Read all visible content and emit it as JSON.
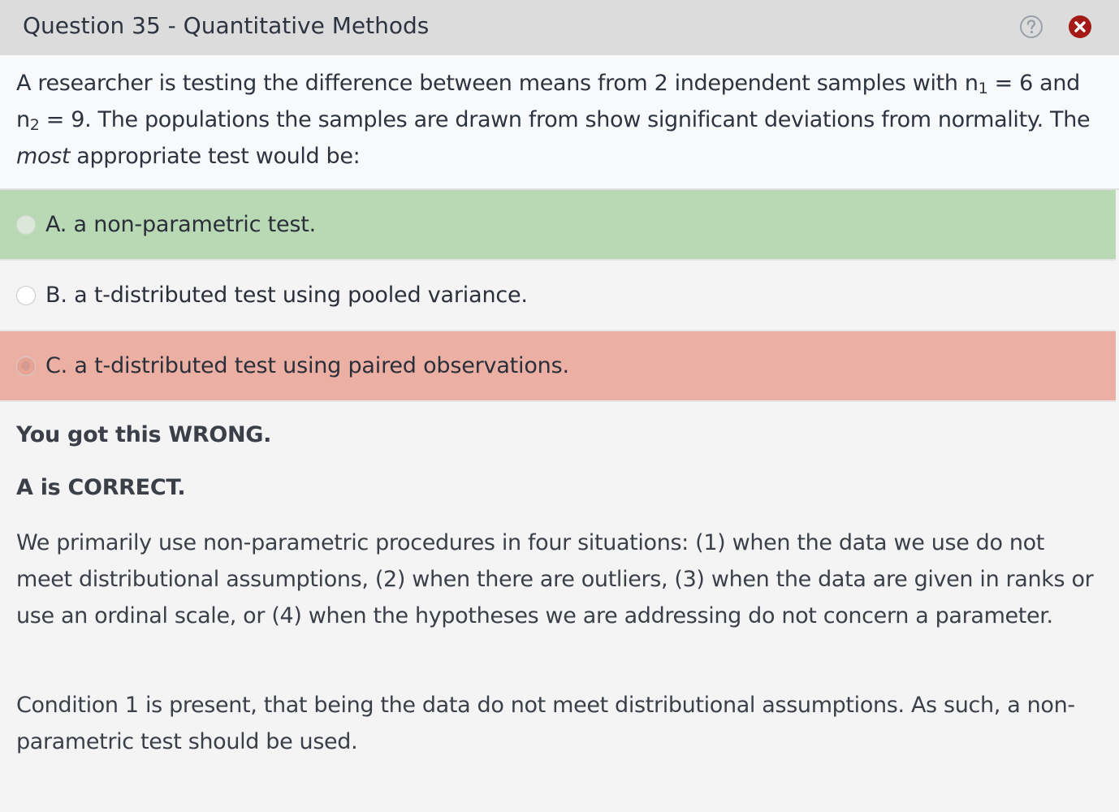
{
  "header": {
    "title": "Question 35 - Quantitative Methods",
    "help_icon": "question-circle-icon",
    "close_icon": "close-circle-icon",
    "close_color": "#a31a16"
  },
  "question": {
    "part1": "A researcher is testing the difference between means from 2 independent samples with n",
    "sub1": "1",
    "part2": " = 6 and n",
    "sub2": "2",
    "part3": " = 9.  The populations the samples are drawn from show significant deviations from normality.  The ",
    "emphasis": "most",
    "part4": " appropriate test would be:"
  },
  "options": [
    {
      "label": "A. a non-parametric test.",
      "state": "correct",
      "color": "#b8d9b4"
    },
    {
      "label": "B. a t-distributed test using pooled variance.",
      "state": "neutral",
      "color": "#f4f4f5"
    },
    {
      "label": "C. a t-distributed test using paired observations.",
      "state": "selected-wrong",
      "color": "#ebb0a3"
    }
  ],
  "feedback": {
    "result": "You got this WRONG.",
    "correct_answer": "A is CORRECT.",
    "explanation_1": "We primarily use non-parametric procedures in four situations: (1) when the data we use do not meet distributional assumptions, (2) when there are outliers, (3) when the data are given in ranks or use an ordinal scale, or (4) when the hypotheses we are addressing do not concern a parameter.",
    "explanation_2": "Condition 1 is present, that being the data do not meet distributional assumptions.  As such, a non-parametric test should be used."
  }
}
